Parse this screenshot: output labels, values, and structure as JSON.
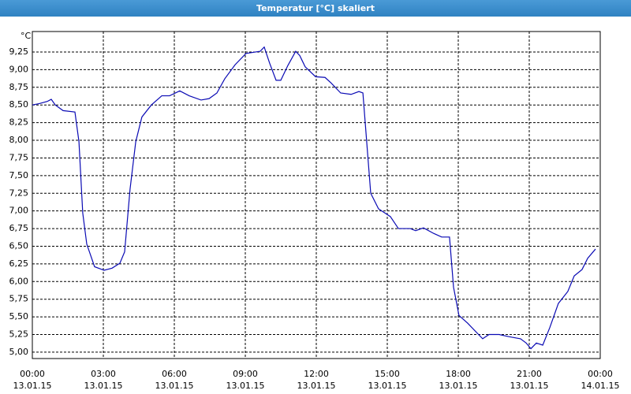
{
  "chart_data": {
    "type": "line",
    "title": "Temperatur [°C] skaliert",
    "y_unit": "°C",
    "x": [
      0,
      0.3,
      0.63,
      0.8,
      0.97,
      1.3,
      1.8,
      1.97,
      2.13,
      2.3,
      2.63,
      3.03,
      3.37,
      3.7,
      3.9,
      4.13,
      4.37,
      4.63,
      5.03,
      5.47,
      5.8,
      6.23,
      6.63,
      7.13,
      7.47,
      7.8,
      8.13,
      8.57,
      9.03,
      9.63,
      9.8,
      10.03,
      10.3,
      10.5,
      10.8,
      11.13,
      11.3,
      11.53,
      11.97,
      12.37,
      12.63,
      13.03,
      13.47,
      13.8,
      13.97,
      14.13,
      14.3,
      14.63,
      15.13,
      15.47,
      15.97,
      16.2,
      16.53,
      16.97,
      17.3,
      17.63,
      17.8,
      18.03,
      18.4,
      18.8,
      19.03,
      19.3,
      19.73,
      20.13,
      20.63,
      20.87,
      21.07,
      21.3,
      21.57,
      21.87,
      22.23,
      22.63,
      22.9,
      23.23,
      23.47,
      23.8
    ],
    "series": [
      {
        "color": "#0a0ab4",
        "values": [
          8.5,
          8.52,
          8.55,
          8.58,
          8.5,
          8.42,
          8.4,
          7.98,
          6.97,
          6.53,
          6.21,
          6.16,
          6.19,
          6.26,
          6.42,
          7.31,
          7.98,
          8.33,
          8.5,
          8.63,
          8.63,
          8.7,
          8.63,
          8.57,
          8.59,
          8.67,
          8.87,
          9.07,
          9.23,
          9.26,
          9.32,
          9.09,
          8.85,
          8.85,
          9.06,
          9.26,
          9.2,
          9.04,
          8.9,
          8.89,
          8.81,
          8.67,
          8.65,
          8.69,
          8.67,
          7.98,
          7.25,
          7.03,
          6.92,
          6.75,
          6.75,
          6.72,
          6.76,
          6.68,
          6.63,
          6.63,
          5.92,
          5.52,
          5.41,
          5.27,
          5.19,
          5.25,
          5.25,
          5.22,
          5.19,
          5.13,
          5.05,
          5.13,
          5.1,
          5.35,
          5.69,
          5.86,
          6.08,
          6.17,
          6.33,
          6.46
        ]
      }
    ],
    "xlim": [
      0,
      24
    ],
    "ylim": [
      4.91,
      9.54
    ],
    "xticks": [
      {
        "value": 0,
        "label": "00:00"
      },
      {
        "value": 3,
        "label": "03:00"
      },
      {
        "value": 6,
        "label": "06:00"
      },
      {
        "value": 9,
        "label": "09:00"
      },
      {
        "value": 12,
        "label": "12:00"
      },
      {
        "value": 15,
        "label": "15:00"
      },
      {
        "value": 18,
        "label": "18:00"
      },
      {
        "value": 21,
        "label": "21:00"
      },
      {
        "value": 24,
        "label": "00:00"
      }
    ],
    "xtick_dates": [
      "13.01.15",
      "13.01.15",
      "13.01.15",
      "13.01.15",
      "13.01.15",
      "13.01.15",
      "13.01.15",
      "13.01.15",
      "14.01.15"
    ],
    "yticks": [
      {
        "value": 5,
        "label": "5,00"
      },
      {
        "value": 5.25,
        "label": "5,25"
      },
      {
        "value": 5.5,
        "label": "5,50"
      },
      {
        "value": 5.75,
        "label": "5,75"
      },
      {
        "value": 6,
        "label": "6,00"
      },
      {
        "value": 6.25,
        "label": "6,25"
      },
      {
        "value": 6.5,
        "label": "6,50"
      },
      {
        "value": 6.75,
        "label": "6,75"
      },
      {
        "value": 7,
        "label": "7,00"
      },
      {
        "value": 7.25,
        "label": "7,25"
      },
      {
        "value": 7.5,
        "label": "7,50"
      },
      {
        "value": 7.75,
        "label": "7,75"
      },
      {
        "value": 8,
        "label": "8,00"
      },
      {
        "value": 8.25,
        "label": "8,25"
      },
      {
        "value": 8.5,
        "label": "8,50"
      },
      {
        "value": 8.75,
        "label": "8,75"
      },
      {
        "value": 9,
        "label": "9,00"
      },
      {
        "value": 9.25,
        "label": "9,25"
      }
    ],
    "grid": true
  }
}
